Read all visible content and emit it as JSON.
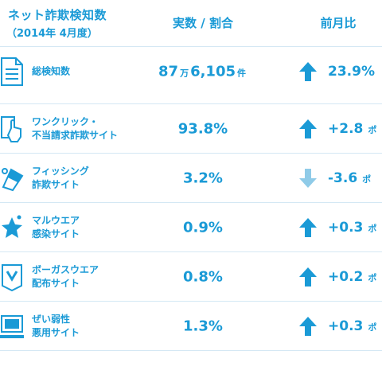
{
  "header": {
    "title": "ネット詐欺検知数",
    "subtitle": "（2014年 4月度）",
    "col_count": "実数 / 割合",
    "col_ratio": "前月比"
  },
  "rows": [
    {
      "label1": "総検知数",
      "label2": "",
      "value_a": "87",
      "value_unit1": "万",
      "value_b": "6,105",
      "value_unit2": "件",
      "direction": "up",
      "change": "23.9%",
      "unit": ""
    },
    {
      "label1": "ワンクリック・",
      "label2": "不当請求詐欺サイト",
      "value": "93.8%",
      "direction": "up",
      "change": "+2.8",
      "unit": "ポ"
    },
    {
      "label1": "フィッシング",
      "label2": "詐欺サイト",
      "value": "3.2%",
      "direction": "down",
      "change": "-3.6",
      "unit": "ポ"
    },
    {
      "label1": "マルウエア",
      "label2": "感染サイト",
      "value": "0.9%",
      "direction": "up",
      "change": "+0.3",
      "unit": "ポ"
    },
    {
      "label1": "ボーガスウエア",
      "label2": "配布サイト",
      "value": "0.8%",
      "direction": "up",
      "change": "+0.2",
      "unit": "ポ"
    },
    {
      "label1": "ぜい弱性",
      "label2": "悪用サイト",
      "value": "1.3%",
      "direction": "up",
      "change": "+0.3",
      "unit": "ポ"
    }
  ],
  "icons": [
    "document-list-icon",
    "click-hand-icon",
    "fishing-lure-icon",
    "malware-star-icon",
    "bogusware-box-icon",
    "vulnerable-computer-icon"
  ],
  "colors": {
    "accent": "#1a9ad6",
    "arrow_down": "#8fcbe8",
    "divider": "#d4e8f4"
  }
}
